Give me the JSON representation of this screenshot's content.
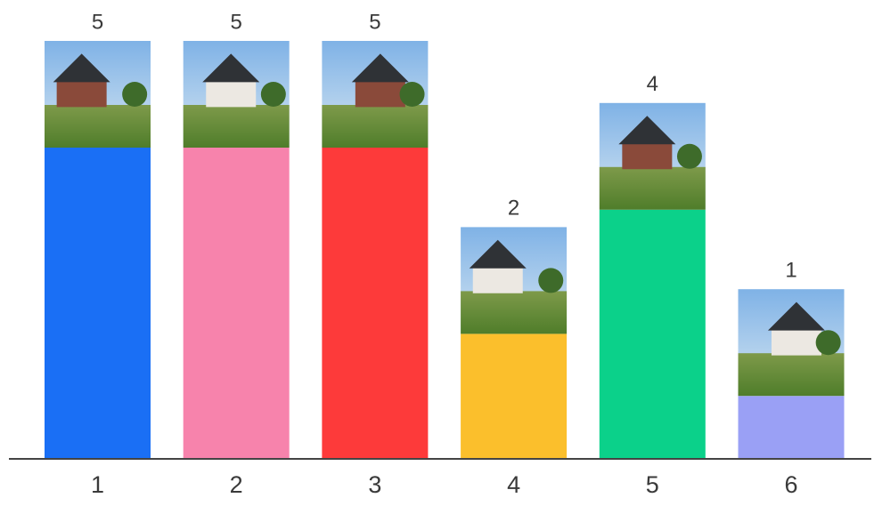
{
  "chart_data": {
    "type": "bar",
    "categories": [
      "1",
      "2",
      "3",
      "4",
      "5",
      "6"
    ],
    "values": [
      5,
      5,
      5,
      2,
      4,
      1
    ],
    "colors": [
      "#1a6ff5",
      "#f783ac",
      "#fd3a3a",
      "#fbbf2c",
      "#0bd18a",
      "#9aa0f5"
    ]
  }
}
